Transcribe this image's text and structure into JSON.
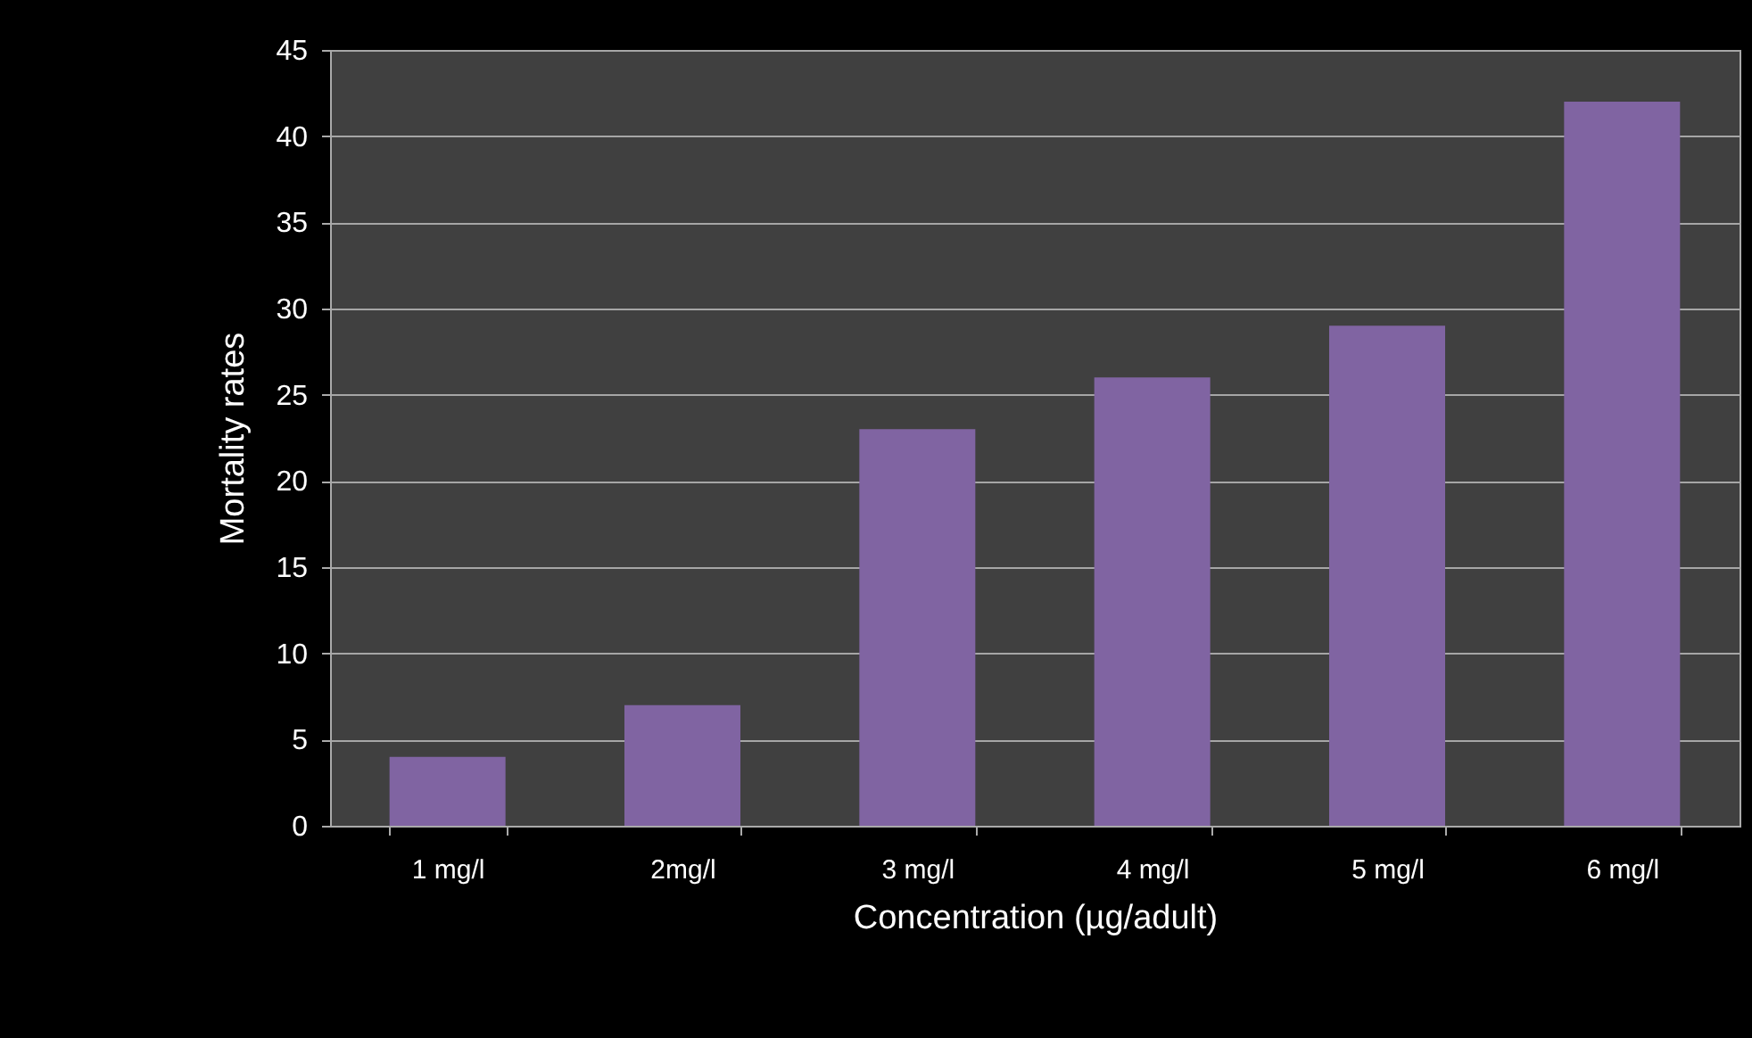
{
  "chart_data": {
    "type": "bar",
    "xlabel": "Concentration (µg/adult)",
    "ylabel": "Mortality rates",
    "categories": [
      "1 mg/l",
      "2mg/l",
      "3 mg/l",
      "4 mg/l",
      "5 mg/l",
      "6 mg/l"
    ],
    "values": [
      4,
      7,
      23,
      26,
      29,
      42
    ],
    "color": "#8064a2",
    "ylim": [
      0,
      45
    ],
    "yticks": [
      0,
      5,
      10,
      15,
      20,
      25,
      30,
      35,
      40,
      45
    ],
    "grid": "y"
  }
}
